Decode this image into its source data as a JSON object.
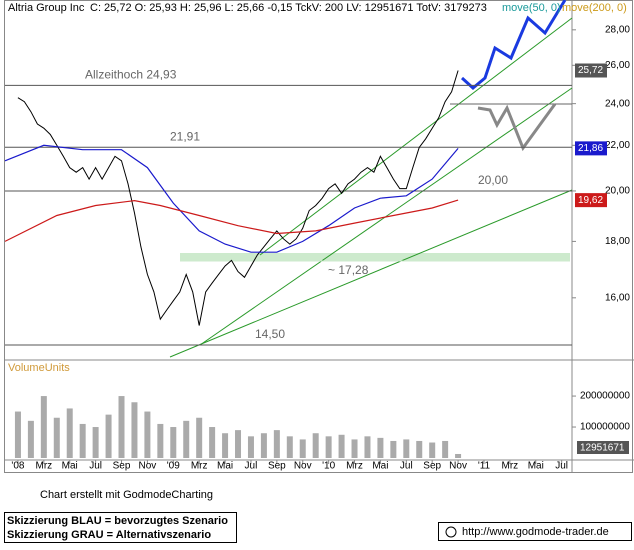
{
  "chart_data": {
    "type": "line",
    "title": "Altria Group Inc",
    "header_info": "C: 25,72  O: 25,93  H: 25,96  L: 25,66  -0,15  TckV: 200  LV: 12951671  TotV: 3179273",
    "log_scale": true,
    "xlim": [
      -1,
      42.8
    ],
    "xticks": [
      {
        "value": 0,
        "label": "'08"
      },
      {
        "value": 2,
        "label": "Mrz"
      },
      {
        "value": 4,
        "label": "Mai"
      },
      {
        "value": 6,
        "label": "Jul"
      },
      {
        "value": 8,
        "label": "Sep"
      },
      {
        "value": 10,
        "label": "Nov"
      },
      {
        "value": 12,
        "label": "'09"
      },
      {
        "value": 14,
        "label": "Mrz"
      },
      {
        "value": 16,
        "label": "Mai"
      },
      {
        "value": 18,
        "label": "Jul"
      },
      {
        "value": 20,
        "label": "Sep"
      },
      {
        "value": 22,
        "label": "Nov"
      },
      {
        "value": 24,
        "label": "'10"
      },
      {
        "value": 26,
        "label": "Mrz"
      },
      {
        "value": 28,
        "label": "Mai"
      },
      {
        "value": 30,
        "label": "Jul"
      },
      {
        "value": 32,
        "label": "Sep"
      },
      {
        "value": 34,
        "label": "Nov"
      },
      {
        "value": 36,
        "label": "'11"
      },
      {
        "value": 38,
        "label": "Mrz"
      },
      {
        "value": 40,
        "label": "Mai"
      },
      {
        "value": 42,
        "label": "Jul"
      }
    ],
    "ylim": [
      14.11,
      28.7
    ],
    "yticks": [
      {
        "value": 16,
        "label": "16,00"
      },
      {
        "value": 18,
        "label": "18,00"
      },
      {
        "value": 20,
        "label": "20,00"
      },
      {
        "value": 22,
        "label": "22,00"
      },
      {
        "value": 24,
        "label": "24,00"
      },
      {
        "value": 26,
        "label": "26,00"
      },
      {
        "value": 28,
        "label": "28,00"
      }
    ],
    "x": [
      0,
      0.5,
      1,
      1.5,
      2,
      2.5,
      3,
      3.5,
      4,
      4.5,
      5,
      5.5,
      6,
      6.5,
      7,
      7.5,
      8,
      8.5,
      9,
      9.5,
      10,
      10.5,
      11,
      11.5,
      12,
      12.5,
      13,
      13.5,
      14,
      14.5,
      15,
      15.5,
      16,
      16.5,
      17,
      17.5,
      18,
      18.5,
      19,
      19.5,
      20,
      20.5,
      21,
      21.5,
      22,
      22.5,
      23,
      23.5,
      24,
      24.5,
      25,
      25.5,
      26,
      26.5,
      27,
      27.5,
      28,
      28.5,
      29,
      29.5,
      30,
      30.5,
      31,
      31.5,
      32,
      32.5,
      33,
      33.5,
      34
    ],
    "series": [
      {
        "color": "#000000",
        "last_label": "25,72",
        "values": [
          24.3,
          24.1,
          23.6,
          23.0,
          22.8,
          22.5,
          22.0,
          21.5,
          21.0,
          20.8,
          21.0,
          20.5,
          21.0,
          20.5,
          21.0,
          21.5,
          21.3,
          20.3,
          19.1,
          17.8,
          16.8,
          16.2,
          15.3,
          15.6,
          15.9,
          16.2,
          16.8,
          16.2,
          15.1,
          16.2,
          16.5,
          16.8,
          17.1,
          17.3,
          16.9,
          16.7,
          17.1,
          17.5,
          17.8,
          18.1,
          18.4,
          18.1,
          17.9,
          18.1,
          18.5,
          19.2,
          19.4,
          19.7,
          20.1,
          20.3,
          19.9,
          20.3,
          20.5,
          20.8,
          21.0,
          20.8,
          21.5,
          21.0,
          20.5,
          20.1,
          20.1,
          21.0,
          21.9,
          22.3,
          22.8,
          23.3,
          24.1,
          24.6,
          25.72
        ]
      },
      {
        "name": "move(50, 0)",
        "color": "#1a1acc",
        "last_label": "21,86",
        "x": [
          -1,
          2,
          5,
          8,
          10,
          12,
          14,
          16,
          18,
          20,
          22,
          24,
          26,
          28,
          30,
          32,
          34
        ],
        "values": [
          21.3,
          22.0,
          21.8,
          21.8,
          21.0,
          19.5,
          18.4,
          17.9,
          17.6,
          17.6,
          18.0,
          18.6,
          19.3,
          19.7,
          19.8,
          20.5,
          21.86
        ]
      },
      {
        "name": "move(200, 0)",
        "color": "#cc1a1a",
        "last_label": "19,62",
        "x": [
          -1,
          3,
          6,
          9,
          11,
          14,
          17,
          20,
          23,
          26,
          29,
          32,
          34
        ],
        "values": [
          18.0,
          19.0,
          19.4,
          19.6,
          19.4,
          19.0,
          18.6,
          18.3,
          18.4,
          18.7,
          19.0,
          19.3,
          19.62
        ]
      }
    ],
    "levels": [
      {
        "value": 24.93,
        "label": "Allzeithoch 24,93"
      },
      {
        "value": 21.91,
        "label": "21,91"
      },
      {
        "value": 20,
        "label": "20,00"
      },
      {
        "value": 14.5,
        "label": "14,50"
      }
    ],
    "zone": {
      "value": 17.28,
      "label": "~ 17,28"
    },
    "volume": {
      "title": "VolumeUnits",
      "ylim": [
        0,
        310000000
      ],
      "yticks": [
        100000000,
        200000000
      ],
      "x": [
        0,
        1,
        2,
        3,
        4,
        5,
        6,
        7,
        8,
        9,
        10,
        11,
        12,
        13,
        14,
        15,
        16,
        17,
        18,
        19,
        20,
        21,
        22,
        23,
        24,
        25,
        26,
        27,
        28,
        29,
        30,
        31,
        32,
        33,
        34
      ],
      "values": [
        150000000,
        120000000,
        200000000,
        130000000,
        160000000,
        110000000,
        100000000,
        140000000,
        200000000,
        180000000,
        150000000,
        110000000,
        100000000,
        120000000,
        130000000,
        100000000,
        80000000,
        90000000,
        70000000,
        80000000,
        90000000,
        70000000,
        60000000,
        80000000,
        70000000,
        75000000,
        60000000,
        70000000,
        65000000,
        55000000,
        60000000,
        55000000,
        50000000,
        55000000,
        12951671
      ]
    }
  },
  "footer": {
    "credit": "Chart erstellt mit GodmodeCharting",
    "note_blue": "Skizzierung BLAU = bevorzugtes Szenario",
    "note_gray": "Skizzierung GRAU = Alternativszenario",
    "url": "http://www.godmode-trader.de"
  }
}
